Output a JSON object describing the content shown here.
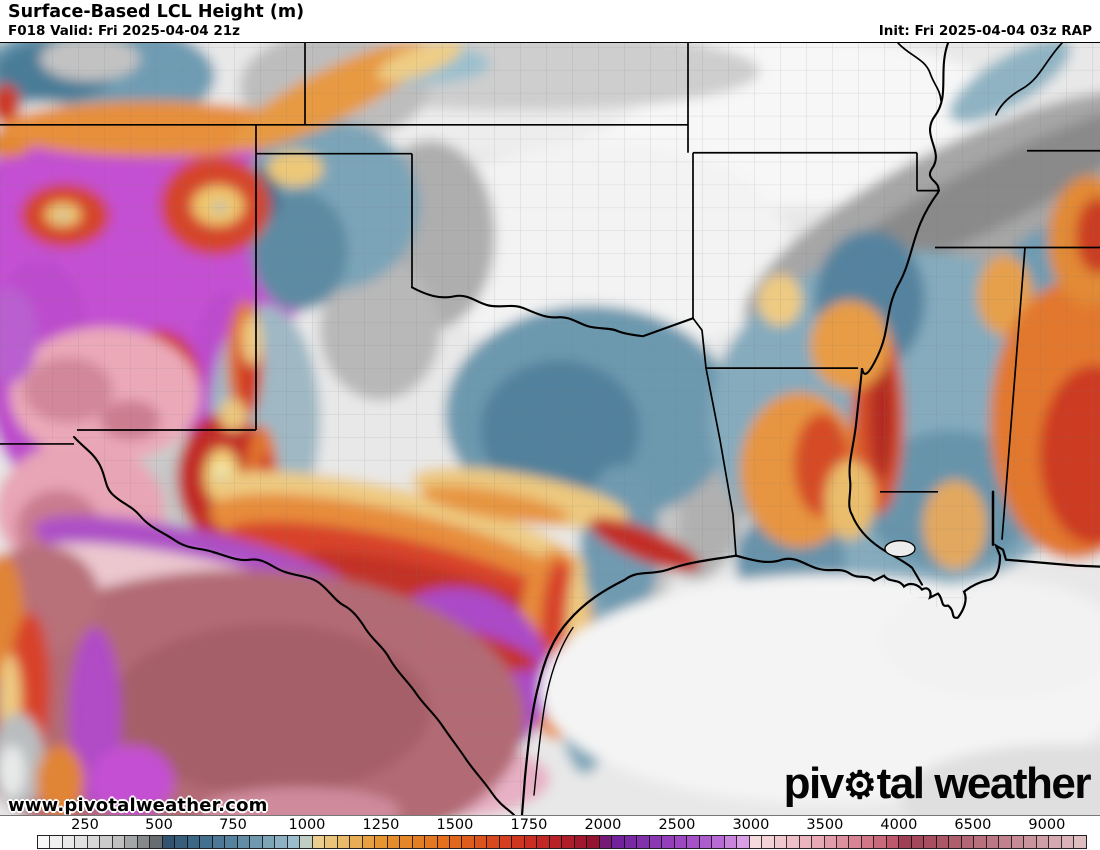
{
  "header": {
    "title": "Surface-Based LCL Height (m)",
    "forecast": "F018 Valid: Fri 2025-04-04 21z",
    "init": "Init: Fri 2025-04-04 03z RAP"
  },
  "map": {
    "watermark": "www.pivotalweather.com",
    "logo": {
      "part1": "piv",
      "gear_icon": "⚙",
      "part2": "tal weather"
    },
    "palette": {
      "low_white": "#fcfcfc",
      "gray": "#9a9a9a",
      "steel_blue": "#2f4f6a",
      "light_blue": "#aac8d4",
      "pale_gold": "#ecd79b",
      "orange": "#e78c3a",
      "red": "#d8432a",
      "crimson": "#8e1133",
      "purple": "#9a43c0",
      "magenta": "#c44fd2",
      "lavender": "#eec9ee",
      "pink": "#ecc7cf",
      "dark_rose": "#b26b74",
      "water_gray": "#ececec"
    }
  },
  "colorbar": {
    "unit_values": [
      "250",
      "500",
      "750",
      "1000",
      "1250",
      "1500",
      "1750",
      "2000",
      "2500",
      "3000",
      "3500",
      "4000",
      "6500",
      "9000"
    ],
    "tick_start_frac": 0.0458,
    "tick_step_frac": 0.0706,
    "cell_count": 84,
    "stops": [
      [
        0.0,
        "#fcfcfc"
      ],
      [
        0.046,
        "#dedede"
      ],
      [
        0.08,
        "#bdbdbd"
      ],
      [
        0.116,
        "#5f6569"
      ],
      [
        0.118,
        "#2f4f6a"
      ],
      [
        0.155,
        "#3f6c8a"
      ],
      [
        0.187,
        "#58849f"
      ],
      [
        0.22,
        "#7da5b8"
      ],
      [
        0.255,
        "#aac8d4"
      ],
      [
        0.258,
        "#ecd79b"
      ],
      [
        0.295,
        "#e9b765"
      ],
      [
        0.327,
        "#e6952f"
      ],
      [
        0.397,
        "#e2691c"
      ],
      [
        0.432,
        "#d84b1e"
      ],
      [
        0.468,
        "#cc2e20"
      ],
      [
        0.505,
        "#b01c2a"
      ],
      [
        0.535,
        "#8e1133"
      ],
      [
        0.545,
        "#6b1d97"
      ],
      [
        0.609,
        "#9a43c0"
      ],
      [
        0.645,
        "#b363d2"
      ],
      [
        0.675,
        "#dda3e6"
      ],
      [
        0.681,
        "#eec9ee"
      ],
      [
        0.684,
        "#f5dadc"
      ],
      [
        0.719,
        "#efc0c8"
      ],
      [
        0.75,
        "#e6a3b0"
      ],
      [
        0.785,
        "#d57f8f"
      ],
      [
        0.815,
        "#c25b70"
      ],
      [
        0.82,
        "#9d3a50"
      ],
      [
        0.885,
        "#b26573"
      ],
      [
        0.951,
        "#cc98a0"
      ],
      [
        1.0,
        "#e2c3c6"
      ]
    ]
  }
}
